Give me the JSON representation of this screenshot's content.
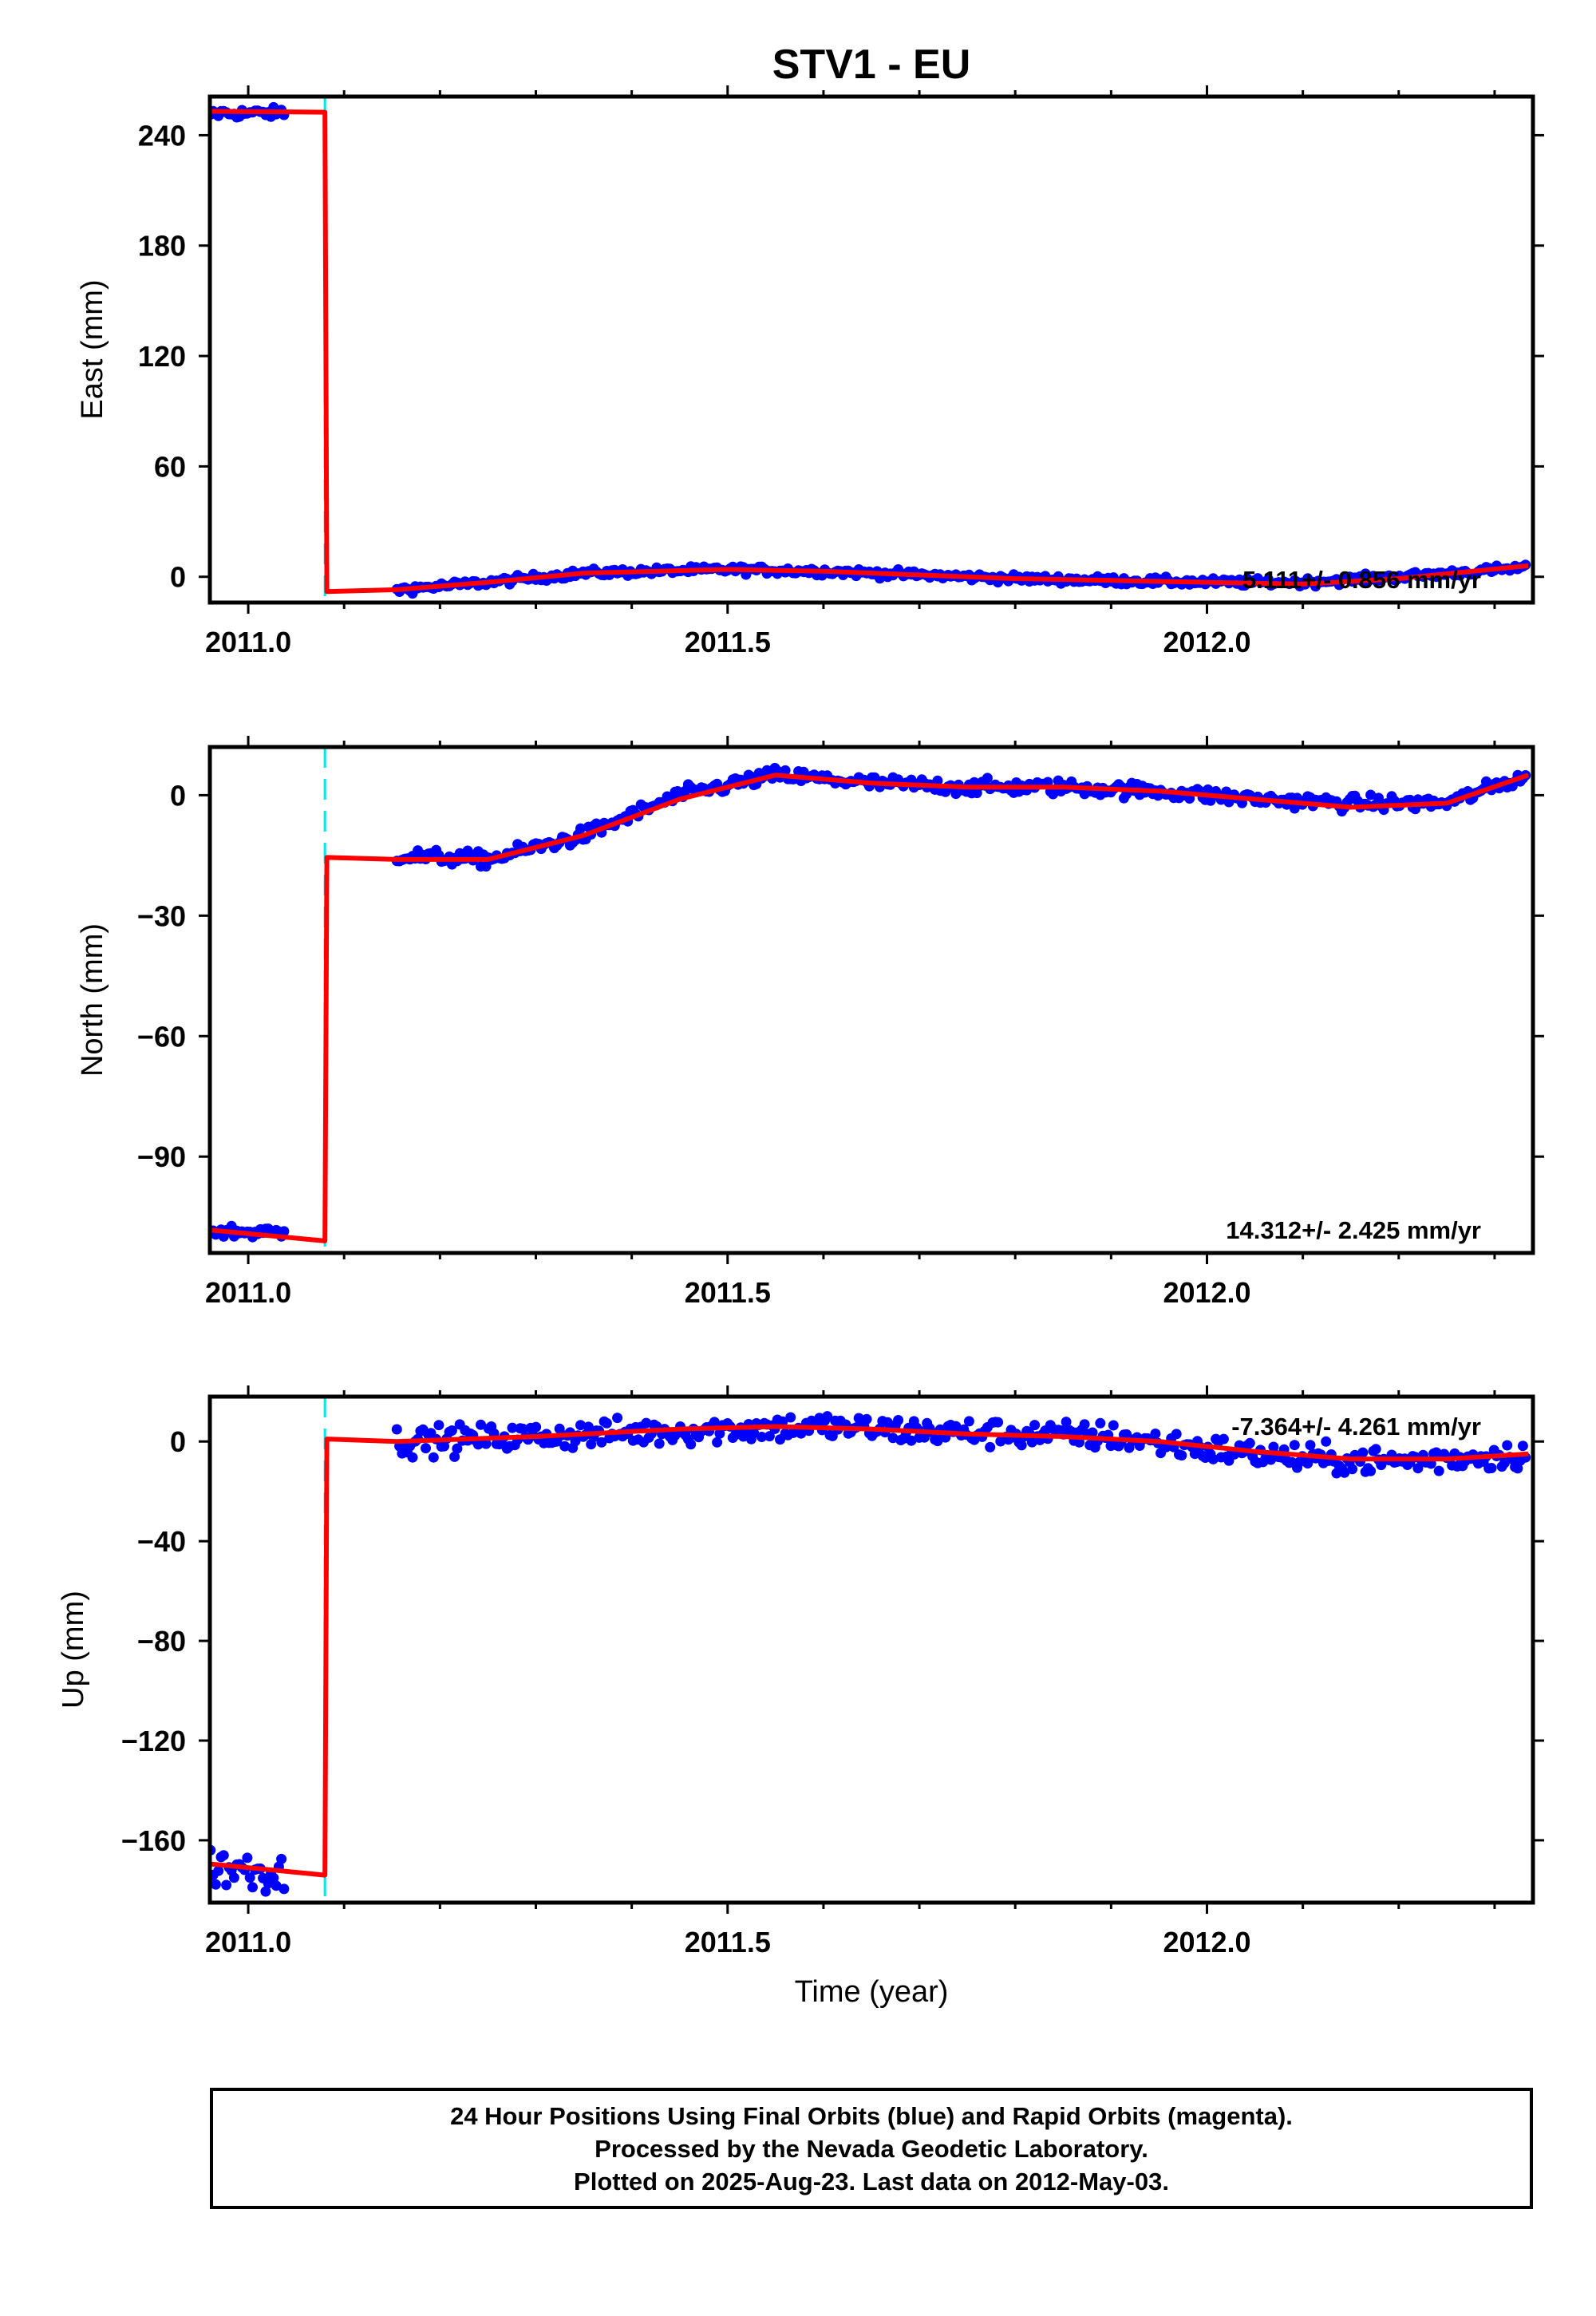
{
  "title": "STV1 - EU",
  "colors": {
    "points": "#0000ff",
    "fit": "#ff0000",
    "offset_marker": "#00e5ee",
    "frame": "#000000"
  },
  "chart_data": [
    {
      "type": "scatter",
      "ylabel": "East (mm)",
      "xlim": [
        2010.96,
        2012.34
      ],
      "ylim": [
        -14,
        261
      ],
      "yticks": [
        0,
        60,
        120,
        180,
        240
      ],
      "xticks": [
        2011.0,
        2011.5,
        2012.0
      ],
      "x_tick_labels": [
        "2011.0",
        "2011.5",
        "2012.0"
      ],
      "rate_label": "5.111+/- 0.856 mm/yr",
      "offset_epoch": 2011.08,
      "show_offset_marker": true,
      "data_segments": [
        {
          "x_start": 2010.947,
          "x_end": 2011.04,
          "trend": [
            [
              2010.947,
              252
            ],
            [
              2011.04,
              252
            ]
          ],
          "noise": 2
        },
        {
          "x_start": 2011.155,
          "x_end": 2012.335,
          "trend": [
            [
              2011.155,
              -7
            ],
            [
              2011.25,
              -3
            ],
            [
              2011.35,
              2
            ],
            [
              2011.5,
              4
            ],
            [
              2011.6,
              3
            ],
            [
              2011.7,
              1
            ],
            [
              2011.8,
              -1
            ],
            [
              2011.9,
              -2
            ],
            [
              2012.0,
              -3
            ],
            [
              2012.1,
              -3
            ],
            [
              2012.2,
              0
            ],
            [
              2012.335,
              5
            ]
          ],
          "noise": 1.5
        }
      ],
      "fit": [
        [
          2010.947,
          253
        ],
        [
          2011.08,
          252.5
        ],
        [
          2011.082,
          -8
        ],
        [
          2011.155,
          -7
        ],
        [
          2011.25,
          -3
        ],
        [
          2011.35,
          2
        ],
        [
          2011.5,
          4
        ],
        [
          2011.6,
          3
        ],
        [
          2011.7,
          1
        ],
        [
          2011.8,
          -1
        ],
        [
          2011.9,
          -2
        ],
        [
          2012.0,
          -3
        ],
        [
          2012.1,
          -4
        ],
        [
          2012.2,
          -1
        ],
        [
          2012.335,
          6
        ]
      ]
    },
    {
      "type": "scatter",
      "ylabel": "North (mm)",
      "xlim": [
        2010.96,
        2012.34
      ],
      "ylim": [
        -114,
        12
      ],
      "yticks": [
        0,
        -30,
        -60,
        -90
      ],
      "y_tick_labels": [
        "0",
        "−30",
        "−60",
        "−90"
      ],
      "xticks": [
        2011.0,
        2011.5,
        2012.0
      ],
      "x_tick_labels": [
        "2011.0",
        "2011.5",
        "2012.0"
      ],
      "rate_label": "14.312+/- 2.425 mm/yr",
      "offset_epoch": 2011.08,
      "show_offset_marker": true,
      "data_segments": [
        {
          "x_start": 2010.947,
          "x_end": 2011.04,
          "trend": [
            [
              2010.947,
              -108.5
            ],
            [
              2011.04,
              -109
            ]
          ],
          "noise": 1.2
        },
        {
          "x_start": 2011.155,
          "x_end": 2012.335,
          "trend": [
            [
              2011.155,
              -15
            ],
            [
              2011.25,
              -16
            ],
            [
              2011.35,
              -10
            ],
            [
              2011.45,
              0
            ],
            [
              2011.55,
              5
            ],
            [
              2011.65,
              3
            ],
            [
              2011.75,
              2
            ],
            [
              2011.85,
              2
            ],
            [
              2011.95,
              1
            ],
            [
              2012.05,
              -1
            ],
            [
              2012.15,
              -2
            ],
            [
              2012.25,
              -2
            ],
            [
              2012.335,
              5
            ]
          ],
          "noise": 1.3
        }
      ],
      "fit": [
        [
          2010.947,
          -108
        ],
        [
          2011.08,
          -111
        ],
        [
          2011.082,
          -15.5
        ],
        [
          2011.155,
          -16
        ],
        [
          2011.25,
          -16
        ],
        [
          2011.35,
          -10
        ],
        [
          2011.45,
          -1
        ],
        [
          2011.55,
          5
        ],
        [
          2011.65,
          3
        ],
        [
          2011.75,
          2
        ],
        [
          2011.85,
          2
        ],
        [
          2011.95,
          1
        ],
        [
          2012.05,
          -1
        ],
        [
          2012.15,
          -3
        ],
        [
          2012.25,
          -2
        ],
        [
          2012.335,
          5
        ]
      ]
    },
    {
      "type": "scatter",
      "ylabel": "Up (mm)",
      "xlim": [
        2010.96,
        2012.34
      ],
      "ylim": [
        -185,
        18
      ],
      "yticks": [
        0,
        -40,
        -80,
        -120,
        -160
      ],
      "y_tick_labels": [
        "0",
        "−40",
        "−80",
        "−120",
        "−160"
      ],
      "xticks": [
        2011.0,
        2011.5,
        2012.0
      ],
      "x_tick_labels": [
        "2011.0",
        "2011.5",
        "2012.0"
      ],
      "xlabel": "Time (year)",
      "rate_label": "-7.364+/- 4.261 mm/yr",
      "offset_epoch": 2011.08,
      "show_offset_marker": true,
      "data_segments": [
        {
          "x_start": 2010.947,
          "x_end": 2011.04,
          "trend": [
            [
              2010.947,
              -170
            ],
            [
              2011.04,
              -173
            ]
          ],
          "noise": 6
        },
        {
          "x_start": 2011.155,
          "x_end": 2012.335,
          "trend": [
            [
              2011.155,
              0
            ],
            [
              2011.3,
              2
            ],
            [
              2011.5,
              5
            ],
            [
              2011.6,
              6
            ],
            [
              2011.7,
              4
            ],
            [
              2011.8,
              3
            ],
            [
              2011.9,
              2
            ],
            [
              2012.0,
              -3
            ],
            [
              2012.1,
              -7
            ],
            [
              2012.2,
              -8
            ],
            [
              2012.335,
              -5
            ]
          ],
          "noise": 4
        }
      ],
      "fit": [
        [
          2010.947,
          -169
        ],
        [
          2011.08,
          -174
        ],
        [
          2011.082,
          1
        ],
        [
          2011.155,
          0
        ],
        [
          2011.3,
          2
        ],
        [
          2011.45,
          5
        ],
        [
          2011.55,
          6
        ],
        [
          2011.65,
          5
        ],
        [
          2011.75,
          3
        ],
        [
          2011.85,
          2
        ],
        [
          2011.95,
          0
        ],
        [
          2012.05,
          -4
        ],
        [
          2012.15,
          -7
        ],
        [
          2012.25,
          -7
        ],
        [
          2012.335,
          -5
        ]
      ]
    }
  ],
  "footer": {
    "line1": "24 Hour Positions Using Final Orbits (blue) and Rapid Orbits (magenta).",
    "line2": "Processed by the Nevada Geodetic Laboratory.",
    "line3": "Plotted on 2025-Aug-23. Last data on 2012-May-03."
  }
}
